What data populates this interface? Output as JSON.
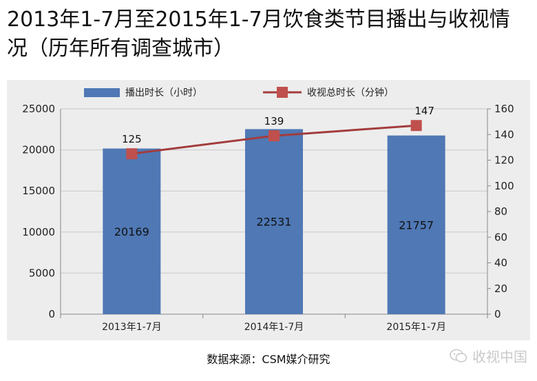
{
  "page": {
    "title": "2013年1-7月至2015年1-7月饮食类节目播出与收视情况（历年所有调查城市）",
    "source": "数据来源：CSM媒介研究",
    "watermark": "收视中国"
  },
  "colors": {
    "bar": "#4f78b5",
    "line": "#a33c3c",
    "marker": "#c0504d",
    "panel": "#ededed"
  },
  "icons": {
    "watermark": "wechat-icon"
  },
  "chart_data": {
    "type": "bar",
    "title": "2013年1-7月至2015年1-7月饮食类节目播出与收视情况（历年所有调查城市）",
    "categories": [
      "2013年1-7月",
      "2014年1-7月",
      "2015年1-7月"
    ],
    "series": [
      {
        "name": "播出时长（小时）",
        "type": "bar",
        "axis": "left",
        "values": [
          20169,
          22531,
          21757
        ]
      },
      {
        "name": "收视总时长（分钟）",
        "type": "line",
        "axis": "right",
        "values": [
          125,
          139,
          147
        ]
      }
    ],
    "ylim": [
      0,
      25000
    ],
    "yticks": [
      0,
      5000,
      10000,
      15000,
      20000,
      25000
    ],
    "y2lim": [
      0,
      160
    ],
    "y2ticks": [
      0,
      20,
      40,
      60,
      80,
      100,
      120,
      140,
      160
    ],
    "grid": true,
    "legend": "top"
  }
}
